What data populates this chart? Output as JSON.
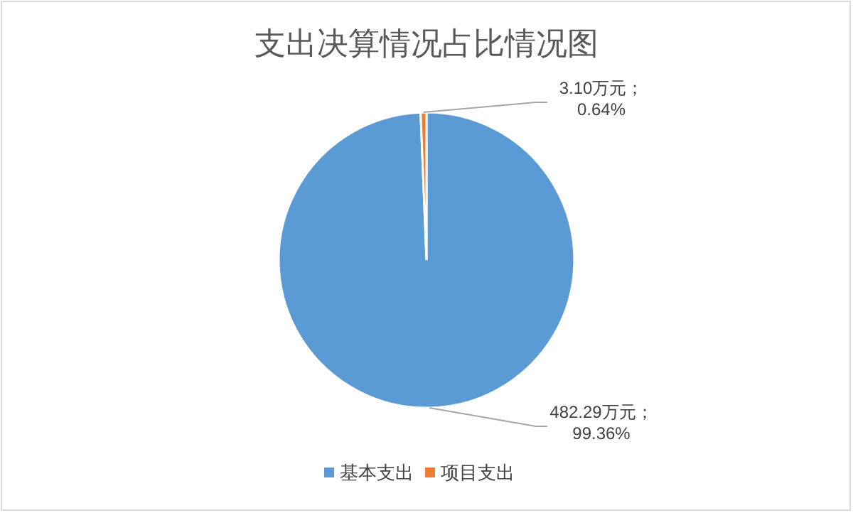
{
  "chart_data": {
    "type": "pie",
    "title": "支出决算情况占比情况图",
    "categories": [
      "基本支出",
      "项目支出"
    ],
    "values": [
      482.29,
      3.1
    ],
    "colors": [
      "#5b9bd5",
      "#ed7d31"
    ],
    "value_labels": [
      "482.29万元；99.36%",
      "3.10万元；0.64%"
    ],
    "legend": "bottom"
  }
}
